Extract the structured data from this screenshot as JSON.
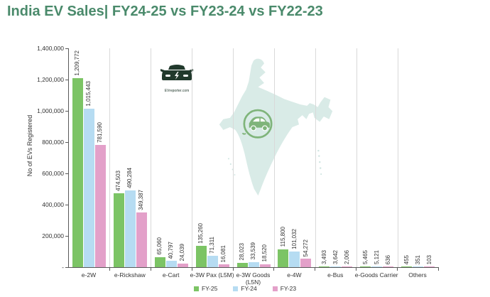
{
  "watermark": {
    "logo_text": "EVreporter.com"
  },
  "colors": {
    "title": "#4a8a6b",
    "map_fill": "#d9ebe7",
    "icon_green": "#7fb47a",
    "logo_green": "#21392c",
    "separator": "#d9d9d9",
    "axis": "#595959"
  },
  "chart_data": {
    "type": "bar",
    "title": "India EV Sales| FY24-25 vs FY23-24 vs FY22-23",
    "ylabel": "No of EVs Registered",
    "xlabel": "",
    "categories": [
      "e-2W",
      "e-Rickshaw",
      "e-Cart",
      "e-3W Pax (L5M)",
      "e-3W Goods (L5N)",
      "e-4W",
      "e-Bus",
      "e-Goods Carrier",
      "Others"
    ],
    "category_labels": [
      "e-2W",
      "e-Rickshaw",
      "e-Cart",
      "e-3W Pax (L5M)",
      "e-3W Goods\n(L5N)",
      "e-4W",
      "e-Bus",
      "e-Goods Carrier",
      "Others"
    ],
    "series": [
      {
        "name": "FY-25",
        "color": "#7cc465",
        "values": [
          1209772,
          474503,
          65060,
          135260,
          28023,
          115800,
          3493,
          5465,
          455
        ]
      },
      {
        "name": "FY-24",
        "color": "#b6dcf2",
        "values": [
          1015443,
          490284,
          40797,
          71311,
          33539,
          101032,
          3642,
          5121,
          351
        ]
      },
      {
        "name": "FY-23",
        "color": "#e3a0c9",
        "values": [
          781590,
          349387,
          24039,
          16081,
          18520,
          54272,
          2006,
          636,
          103
        ]
      }
    ],
    "ylim": [
      0,
      1400000
    ],
    "ytick_step": 200000,
    "ytick_labels": [
      "-",
      "200,000",
      "400,000",
      "600,000",
      "800,000",
      "1,000,000",
      "1,200,000",
      "1,400,000"
    ],
    "legend_position": "bottom",
    "grid": "vertical category separators, no horizontal gridlines",
    "annotations": [
      "India map watermark with EV car icon",
      "EVreporter.com logo"
    ]
  }
}
